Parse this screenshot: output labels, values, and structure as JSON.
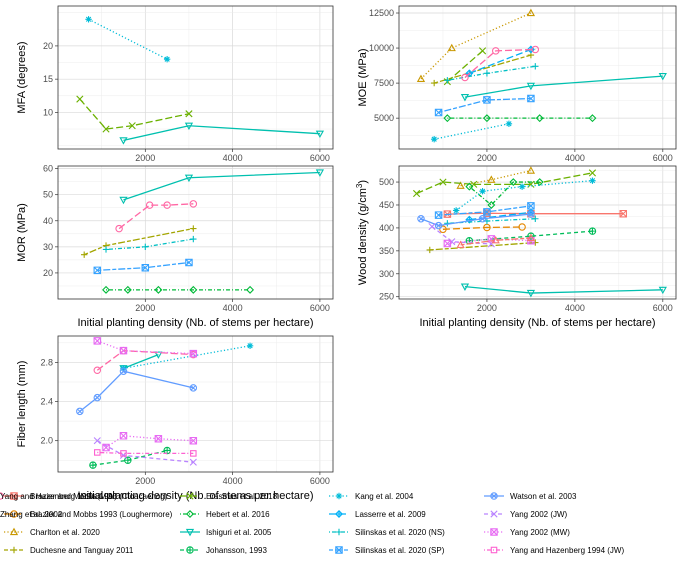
{
  "colors": {
    "brazier_cloac": "#f8766d",
    "brazier_lough": "#e58700",
    "charlton": "#c99800",
    "duchesne": "#a3a500",
    "erasmus": "#6bb100",
    "hebert": "#00ba38",
    "ishiguri": "#00c0af",
    "johansson": "#00bc59",
    "kang": "#00bcd8",
    "lasserre": "#00b0f6",
    "silinskas_ns": "#00bfc4",
    "silinskas_sp": "#35a2ff",
    "watson": "#619cff",
    "yang_jw": "#b983ff",
    "yang_mw": "#e76bf3",
    "yh_jw": "#fd61d1",
    "yh_mw": "#ff67a4",
    "zhang": "#f8766d"
  },
  "legend": [
    {
      "key": "brazier_cloac",
      "label": "Brazier and Mobbs 1993 (Cloacaenog)",
      "shape": "square-x",
      "dash": "solid"
    },
    {
      "key": "brazier_lough",
      "label": "Brazier and Mobbs 1993 (Loughermore)",
      "shape": "circle",
      "dash": "longdash"
    },
    {
      "key": "charlton",
      "label": "Charlton et al. 2020",
      "shape": "triangle",
      "dash": "dotted"
    },
    {
      "key": "duchesne",
      "label": "Duchesne and Tanguay 2011",
      "shape": "plus",
      "dash": "twodash"
    },
    {
      "key": "erasmus",
      "label": "Erasmus et al. 2018",
      "shape": "x",
      "dash": "longdash"
    },
    {
      "key": "hebert",
      "label": "Hebert et al. 2016",
      "shape": "diamond",
      "dash": "dotdash"
    },
    {
      "key": "ishiguri",
      "label": "Ishiguri et al. 2005",
      "shape": "triangle-down",
      "dash": "solid"
    },
    {
      "key": "johansson",
      "label": "Johansson, 1993",
      "shape": "circle-plus",
      "dash": "dashed"
    },
    {
      "key": "kang",
      "label": "Kang et al. 2004",
      "shape": "star",
      "dash": "dotted"
    },
    {
      "key": "lasserre",
      "label": "Lasserre et al. 2009",
      "shape": "diamond-plus",
      "dash": "longdash"
    },
    {
      "key": "silinskas_ns",
      "label": "Silinskas et al. 2020 (NS)",
      "shape": "plus",
      "dash": "dotdash"
    },
    {
      "key": "silinskas_sp",
      "label": "Silinskas et al. 2020 (SP)",
      "shape": "square-x",
      "dash": "twodash"
    },
    {
      "key": "watson",
      "label": "Watson et al. 2003",
      "shape": "circle-x",
      "dash": "solid"
    },
    {
      "key": "yang_jw",
      "label": "Yang 2002 (JW)",
      "shape": "x",
      "dash": "dashed"
    },
    {
      "key": "yang_mw",
      "label": "Yang 2002 (MW)",
      "shape": "square-x",
      "dash": "dotted"
    },
    {
      "key": "yh_jw",
      "label": "Yang and Hazenberg 1994 (JW)",
      "shape": "square",
      "dash": "dotdash"
    },
    {
      "key": "yh_mw",
      "label": "Yang and Hazenberg 1994 (MW)",
      "shape": "circle",
      "dash": "longdash"
    },
    {
      "key": "zhang",
      "label": "Zhang et al. 2002",
      "shape": "triangle",
      "dash": "twodash"
    }
  ],
  "chart_data": [
    {
      "type": "line",
      "title": "",
      "xlabel": "Initial planting density (Nb. of stems per hectare)",
      "ylabel": "MFA (degrees)",
      "xlim": [
        0,
        6300
      ],
      "ylim": [
        4.5,
        26
      ],
      "xticks": [
        2000,
        4000,
        6000
      ],
      "yticks": [
        10,
        15,
        20
      ],
      "series": [
        {
          "key": "erasmus",
          "x": [
            500,
            1100,
            1700,
            3000
          ],
          "y": [
            12,
            7.5,
            8,
            9.8
          ]
        },
        {
          "key": "ishiguri",
          "x": [
            1500,
            3000,
            6000
          ],
          "y": [
            5.8,
            8,
            6.8
          ]
        },
        {
          "key": "kang",
          "x": [
            700,
            2500
          ],
          "y": [
            24,
            18
          ]
        }
      ]
    },
    {
      "type": "line",
      "title": "",
      "xlabel": "Initial planting density (Nb. of stems per hectare)",
      "ylabel": "MOE (MPa)",
      "xlim": [
        0,
        6300
      ],
      "ylim": [
        2800,
        13000
      ],
      "xticks": [
        2000,
        4000,
        6000
      ],
      "yticks": [
        5000,
        7500,
        10000,
        12500
      ],
      "series": [
        {
          "key": "charlton",
          "x": [
            500,
            1200,
            3000
          ],
          "y": [
            7800,
            10000,
            12500
          ]
        },
        {
          "key": "duchesne",
          "x": [
            800,
            3000
          ],
          "y": [
            7500,
            9500
          ]
        },
        {
          "key": "erasmus",
          "x": [
            1100,
            1900
          ],
          "y": [
            7600,
            9800
          ]
        },
        {
          "key": "hebert",
          "x": [
            1100,
            2000,
            3200,
            4400
          ],
          "y": [
            5000,
            5000,
            5000,
            5000
          ]
        },
        {
          "key": "ishiguri",
          "x": [
            1500,
            3000,
            6000
          ],
          "y": [
            6500,
            7300,
            8000
          ]
        },
        {
          "key": "kang",
          "x": [
            800,
            2500
          ],
          "y": [
            3500,
            4600
          ]
        },
        {
          "key": "lasserre",
          "x": [
            1600,
            3000
          ],
          "y": [
            8200,
            9900
          ]
        },
        {
          "key": "silinskas_ns",
          "x": [
            1100,
            2000,
            3100
          ],
          "y": [
            7700,
            8200,
            8700
          ]
        },
        {
          "key": "silinskas_sp",
          "x": [
            900,
            2000,
            3000
          ],
          "y": [
            5400,
            6300,
            6400
          ]
        },
        {
          "key": "yh_mw",
          "x": [
            1500,
            2200,
            3100
          ],
          "y": [
            7900,
            9800,
            9900
          ]
        }
      ]
    },
    {
      "type": "line",
      "title": "",
      "xlabel": "Initial planting density (Nb. of stems per hectare)",
      "ylabel": "MOR (MPa)",
      "xlim": [
        0,
        6300
      ],
      "ylim": [
        10,
        61
      ],
      "xticks": [
        2000,
        4000,
        6000
      ],
      "yticks": [
        20,
        30,
        40,
        50,
        60
      ],
      "series": [
        {
          "key": "duchesne",
          "x": [
            600,
            1100,
            3100
          ],
          "y": [
            27,
            30.5,
            37
          ]
        },
        {
          "key": "hebert",
          "x": [
            1100,
            1600,
            2300,
            3100,
            4400
          ],
          "y": [
            13.5,
            13.5,
            13.5,
            13.5,
            13.5
          ]
        },
        {
          "key": "ishiguri",
          "x": [
            1500,
            3000,
            6000
          ],
          "y": [
            48,
            56.5,
            58.5
          ]
        },
        {
          "key": "silinskas_ns",
          "x": [
            1100,
            2000,
            3100
          ],
          "y": [
            29,
            30,
            33
          ]
        },
        {
          "key": "silinskas_sp",
          "x": [
            900,
            2000,
            3000
          ],
          "y": [
            21,
            22,
            24
          ]
        },
        {
          "key": "yh_mw",
          "x": [
            1400,
            2100,
            2500,
            3100
          ],
          "y": [
            37,
            46,
            46,
            46.5
          ]
        }
      ]
    },
    {
      "type": "line",
      "title": "",
      "xlabel": "Initial planting density (Nb. of stems per hectare)",
      "ylabel": "Wood density (g/cm3)",
      "xlim": [
        0,
        6300
      ],
      "ylim": [
        245,
        535
      ],
      "xticks": [
        2000,
        4000,
        6000
      ],
      "yticks": [
        250,
        300,
        350,
        400,
        450,
        500
      ],
      "series": [
        {
          "key": "brazier_cloac",
          "x": [
            1100,
            2000,
            3000,
            5100
          ],
          "y": [
            430,
            432,
            431,
            431
          ]
        },
        {
          "key": "brazier_lough",
          "x": [
            1000,
            2000,
            2800
          ],
          "y": [
            397,
            401,
            402
          ]
        },
        {
          "key": "charlton",
          "x": [
            1400,
            2100,
            3000
          ],
          "y": [
            492,
            505,
            525
          ]
        },
        {
          "key": "duchesne",
          "x": [
            700,
            3100
          ],
          "y": [
            352,
            368
          ]
        },
        {
          "key": "erasmus",
          "x": [
            400,
            1000,
            1700,
            3000,
            4400
          ],
          "y": [
            475,
            500,
            495,
            495,
            520
          ]
        },
        {
          "key": "hebert",
          "x": [
            1600,
            2100,
            2600,
            3200
          ],
          "y": [
            490,
            450,
            500,
            500
          ]
        },
        {
          "key": "ishiguri",
          "x": [
            1500,
            3000,
            6000
          ],
          "y": [
            272,
            258,
            265
          ]
        },
        {
          "key": "johansson",
          "x": [
            1600,
            3000,
            4400
          ],
          "y": [
            372,
            382,
            393
          ]
        },
        {
          "key": "kang",
          "x": [
            1300,
            1900,
            2800,
            4400
          ],
          "y": [
            438,
            480,
            490,
            503
          ]
        },
        {
          "key": "lasserre",
          "x": [
            1600,
            3000
          ],
          "y": [
            418,
            434
          ]
        },
        {
          "key": "silinskas_ns",
          "x": [
            1100,
            2000,
            3100
          ],
          "y": [
            410,
            415,
            420
          ]
        },
        {
          "key": "silinskas_sp",
          "x": [
            900,
            2000,
            3000
          ],
          "y": [
            428,
            435,
            448
          ]
        },
        {
          "key": "watson",
          "x": [
            500,
            900,
            1900,
            3000
          ],
          "y": [
            420,
            405,
            420,
            430
          ]
        },
        {
          "key": "yang_jw",
          "x": [
            750,
            1200,
            2100
          ],
          "y": [
            403,
            370,
            365
          ]
        },
        {
          "key": "yang_mw",
          "x": [
            1100,
            2100,
            3000
          ],
          "y": [
            366,
            376,
            372
          ]
        },
        {
          "key": "zhang",
          "x": [
            1400,
            2200,
            3000
          ],
          "y": [
            363,
            373,
            378
          ]
        }
      ]
    },
    {
      "type": "line",
      "title": "",
      "xlabel": "Initial planting density (Nb. of stems per hectare)",
      "ylabel": "Fiber length (mm)",
      "xlim": [
        0,
        6300
      ],
      "ylim": [
        1.68,
        3.07
      ],
      "xticks": [
        2000,
        4000,
        6000
      ],
      "yticks": [
        2.0,
        2.4,
        2.8
      ],
      "series": [
        {
          "key": "ishiguri",
          "x": [
            1500,
            2300
          ],
          "y": [
            2.74,
            2.88
          ]
        },
        {
          "key": "kang",
          "x": [
            1500,
            4400
          ],
          "y": [
            2.74,
            2.97
          ]
        },
        {
          "key": "johansson",
          "x": [
            800,
            1600,
            2500
          ],
          "y": [
            1.75,
            1.8,
            1.9
          ]
        },
        {
          "key": "watson",
          "x": [
            500,
            900,
            1500,
            3100
          ],
          "y": [
            2.3,
            2.44,
            2.71,
            2.54
          ]
        },
        {
          "key": "yang_jw",
          "x": [
            900,
            1500,
            3100
          ],
          "y": [
            2.0,
            1.85,
            1.78
          ]
        },
        {
          "key": "yang_mw",
          "x": [
            1100,
            1500,
            2300,
            3100
          ],
          "y": [
            1.93,
            2.05,
            2.02,
            2.0
          ]
        },
        {
          "key": "yh_jw",
          "x": [
            900,
            1500,
            3100
          ],
          "y": [
            1.88,
            1.87,
            1.87
          ]
        },
        {
          "key": "yh_mw",
          "x": [
            900,
            1500,
            3100
          ],
          "y": [
            2.72,
            2.92,
            2.88
          ]
        },
        {
          "key": "yang_mw",
          "x": [
            900,
            1500,
            3100
          ],
          "y": [
            3.02,
            2.92,
            2.89
          ]
        }
      ]
    }
  ]
}
